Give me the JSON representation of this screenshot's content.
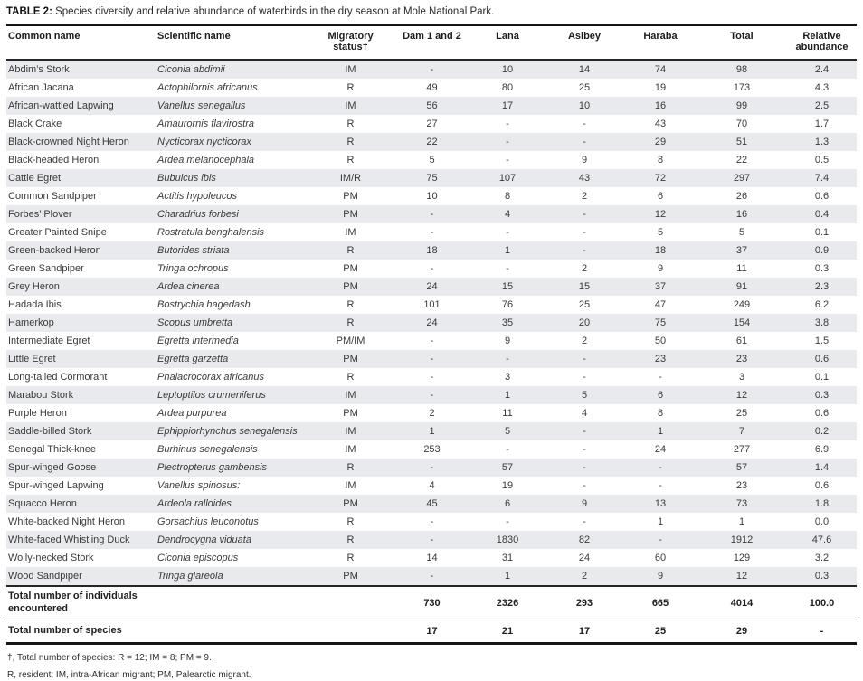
{
  "page": {
    "title_label": "TABLE 2:",
    "title_text": "Species diversity and relative abundance of waterbirds in the dry season at Mole National Park."
  },
  "table": {
    "headers": [
      "Common name",
      "Scientific name",
      "Migratory status†",
      "Dam 1 and 2",
      "Lana",
      "Asibey",
      "Haraba",
      "Total",
      "Relative abundance"
    ],
    "rows": [
      [
        "Abdim’s Stork",
        "Ciconia abdimii",
        "IM",
        "-",
        "10",
        "14",
        "74",
        "98",
        "2.4"
      ],
      [
        "African Jacana",
        "Actophilornis africanus",
        "R",
        "49",
        "80",
        "25",
        "19",
        "173",
        "4.3"
      ],
      [
        "African-wattled Lapwing",
        "Vanellus senegallus",
        "IM",
        "56",
        "17",
        "10",
        "16",
        "99",
        "2.5"
      ],
      [
        "Black Crake",
        "Amaurornis flavirostra",
        "R",
        "27",
        "-",
        "-",
        "43",
        "70",
        "1.7"
      ],
      [
        "Black-crowned Night Heron",
        "Nycticorax nycticorax",
        "R",
        "22",
        "-",
        "-",
        "29",
        "51",
        "1.3"
      ],
      [
        "Black-headed Heron",
        "Ardea melanocephala",
        "R",
        "5",
        "-",
        "9",
        "8",
        "22",
        "0.5"
      ],
      [
        "Cattle Egret",
        "Bubulcus ibis",
        "IM/R",
        "75",
        "107",
        "43",
        "72",
        "297",
        "7.4"
      ],
      [
        "Common Sandpiper",
        "Actitis hypoleucos",
        "PM",
        "10",
        "8",
        "2",
        "6",
        "26",
        "0.6"
      ],
      [
        "Forbes’ Plover",
        "Charadrius forbesi",
        "PM",
        "-",
        "4",
        "-",
        "12",
        "16",
        "0.4"
      ],
      [
        "Greater Painted Snipe",
        "Rostratula benghalensis",
        "IM",
        "-",
        "-",
        "-",
        "5",
        "5",
        "0.1"
      ],
      [
        "Green-backed Heron",
        "Butorides striata",
        "R",
        "18",
        "1",
        "-",
        "18",
        "37",
        "0.9"
      ],
      [
        "Green Sandpiper",
        "Tringa ochropus",
        "PM",
        "-",
        "-",
        "2",
        "9",
        "11",
        "0.3"
      ],
      [
        "Grey Heron",
        "Ardea cinerea",
        "PM",
        "24",
        "15",
        "15",
        "37",
        "91",
        "2.3"
      ],
      [
        "Hadada Ibis",
        "Bostrychia hagedash",
        "R",
        "101",
        "76",
        "25",
        "47",
        "249",
        "6.2"
      ],
      [
        "Hamerkop",
        "Scopus umbretta",
        "R",
        "24",
        "35",
        "20",
        "75",
        "154",
        "3.8"
      ],
      [
        "Intermediate Egret",
        "Egretta intermedia",
        "PM/IM",
        "-",
        "9",
        "2",
        "50",
        "61",
        "1.5"
      ],
      [
        "Little Egret",
        "Egretta garzetta",
        "PM",
        "-",
        "-",
        "-",
        "23",
        "23",
        "0.6"
      ],
      [
        "Long-tailed Cormorant",
        "Phalacrocorax africanus",
        "R",
        "-",
        "3",
        "-",
        "-",
        "3",
        "0.1"
      ],
      [
        "Marabou Stork",
        "Leptoptilos crumeniferus",
        "IM",
        "-",
        "1",
        "5",
        "6",
        "12",
        "0.3"
      ],
      [
        "Purple Heron",
        "Ardea purpurea",
        "PM",
        "2",
        "11",
        "4",
        "8",
        "25",
        "0.6"
      ],
      [
        "Saddle-billed Stork",
        "Ephippiorhynchus senegalensis",
        "IM",
        "1",
        "5",
        "-",
        "1",
        "7",
        "0.2"
      ],
      [
        "Senegal Thick-knee",
        "Burhinus senegalensis",
        "IM",
        "253",
        "-",
        "-",
        "24",
        "277",
        "6.9"
      ],
      [
        "Spur-winged Goose",
        "Plectropterus gambensis",
        "R",
        "-",
        "57",
        "-",
        "-",
        "57",
        "1.4"
      ],
      [
        "Spur-winged Lapwing",
        "Vanellus spinosus:",
        "IM",
        "4",
        "19",
        "-",
        "-",
        "23",
        "0.6"
      ],
      [
        "Squacco Heron",
        "Ardeola ralloides",
        "PM",
        "45",
        "6",
        "9",
        "13",
        "73",
        "1.8"
      ],
      [
        "White-backed Night Heron",
        "Gorsachius leuconotus",
        "R",
        "-",
        "-",
        "-",
        "1",
        "1",
        "0.0"
      ],
      [
        "White-faced Whistling Duck",
        "Dendrocygna viduata",
        "R",
        "-",
        "1830",
        "82",
        "-",
        "1912",
        "47.6"
      ],
      [
        "Wolly-necked Stork",
        "Ciconia episcopus",
        "R",
        "14",
        "31",
        "24",
        "60",
        "129",
        "3.2"
      ],
      [
        "Wood Sandpiper",
        "Tringa glareola",
        "PM",
        "-",
        "1",
        "2",
        "9",
        "12",
        "0.3"
      ]
    ],
    "totals": [
      {
        "label": "Total number of individuals encountered",
        "values": [
          "730",
          "2326",
          "293",
          "665",
          "4014",
          "100.0"
        ]
      },
      {
        "label": "Total number of species",
        "values": [
          "17",
          "21",
          "17",
          "25",
          "29",
          "-"
        ]
      }
    ]
  },
  "footnotes": [
    "†, Total number of species: R = 12; IM = 8; PM = 9.",
    "R, resident; IM, intra-African migrant; PM, Palearctic migrant."
  ]
}
